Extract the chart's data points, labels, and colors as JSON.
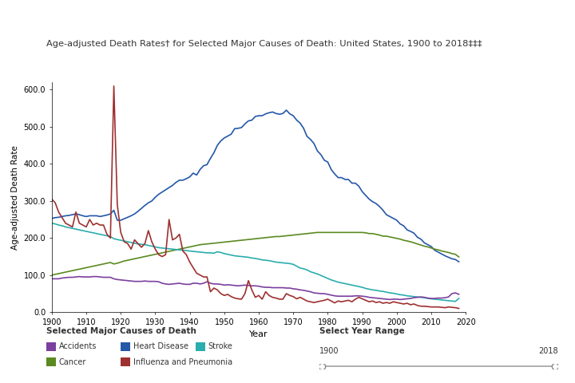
{
  "title": "Age-adjusted Death Rates† for Selected Major Causes of Death: United States, 1900 to 2018‡‡‡",
  "xlabel": "Year",
  "ylabel": "Age-adjusted Death Rate",
  "ylim": [
    0,
    620
  ],
  "xlim": [
    1900,
    2020
  ],
  "yticks": [
    0.0,
    100.0,
    200.0,
    300.0,
    400.0,
    500.0,
    600.0
  ],
  "xticks": [
    1900,
    1910,
    1920,
    1930,
    1940,
    1950,
    1960,
    1970,
    1980,
    1990,
    2000,
    2010,
    2020
  ],
  "legend_title": "Selected Major Causes of Death",
  "slider_label": "Select Year Range",
  "slider_start": "1900",
  "slider_end": "2018",
  "background_color": "#ffffff",
  "colors": {
    "heart_disease": "#2457a8",
    "cancer": "#5a8a20",
    "stroke": "#2aadad",
    "accidents": "#7b3f9e",
    "influenza": "#9e3030"
  },
  "heart_disease": {
    "years": [
      1900,
      1901,
      1902,
      1903,
      1904,
      1905,
      1906,
      1907,
      1908,
      1909,
      1910,
      1911,
      1912,
      1913,
      1914,
      1915,
      1916,
      1917,
      1918,
      1919,
      1920,
      1921,
      1922,
      1923,
      1924,
      1925,
      1926,
      1927,
      1928,
      1929,
      1930,
      1931,
      1932,
      1933,
      1934,
      1935,
      1936,
      1937,
      1938,
      1939,
      1940,
      1941,
      1942,
      1943,
      1944,
      1945,
      1946,
      1947,
      1948,
      1949,
      1950,
      1951,
      1952,
      1953,
      1954,
      1955,
      1956,
      1957,
      1958,
      1959,
      1960,
      1961,
      1962,
      1963,
      1964,
      1965,
      1966,
      1967,
      1968,
      1969,
      1970,
      1971,
      1972,
      1973,
      1974,
      1975,
      1976,
      1977,
      1978,
      1979,
      1980,
      1981,
      1982,
      1983,
      1984,
      1985,
      1986,
      1987,
      1988,
      1989,
      1990,
      1991,
      1992,
      1993,
      1994,
      1995,
      1996,
      1997,
      1998,
      1999,
      2000,
      2001,
      2002,
      2003,
      2004,
      2005,
      2006,
      2007,
      2008,
      2009,
      2010,
      2011,
      2012,
      2013,
      2014,
      2015,
      2016,
      2017,
      2018
    ],
    "values": [
      253,
      255,
      256,
      258,
      260,
      261,
      263,
      265,
      263,
      260,
      258,
      260,
      260,
      260,
      258,
      260,
      262,
      265,
      275,
      248,
      248,
      252,
      256,
      260,
      265,
      272,
      280,
      288,
      295,
      300,
      310,
      318,
      324,
      330,
      336,
      342,
      350,
      356,
      356,
      360,
      365,
      375,
      370,
      385,
      395,
      398,
      415,
      430,
      450,
      462,
      470,
      475,
      480,
      495,
      496,
      498,
      508,
      516,
      518,
      528,
      530,
      530,
      535,
      538,
      540,
      536,
      534,
      536,
      545,
      535,
      530,
      518,
      510,
      496,
      474,
      466,
      455,
      435,
      425,
      410,
      405,
      385,
      373,
      363,
      363,
      358,
      358,
      348,
      348,
      340,
      325,
      315,
      305,
      298,
      293,
      285,
      275,
      263,
      258,
      253,
      248,
      238,
      233,
      222,
      218,
      213,
      202,
      197,
      187,
      182,
      177,
      167,
      162,
      157,
      152,
      148,
      144,
      142,
      136
    ]
  },
  "cancer": {
    "years": [
      1900,
      1901,
      1902,
      1903,
      1904,
      1905,
      1906,
      1907,
      1908,
      1909,
      1910,
      1911,
      1912,
      1913,
      1914,
      1915,
      1916,
      1917,
      1918,
      1919,
      1920,
      1921,
      1922,
      1923,
      1924,
      1925,
      1926,
      1927,
      1928,
      1929,
      1930,
      1931,
      1932,
      1933,
      1934,
      1935,
      1936,
      1937,
      1938,
      1939,
      1940,
      1941,
      1942,
      1943,
      1944,
      1945,
      1946,
      1947,
      1948,
      1949,
      1950,
      1951,
      1952,
      1953,
      1954,
      1955,
      1956,
      1957,
      1958,
      1959,
      1960,
      1961,
      1962,
      1963,
      1964,
      1965,
      1966,
      1967,
      1968,
      1969,
      1970,
      1971,
      1972,
      1973,
      1974,
      1975,
      1976,
      1977,
      1978,
      1979,
      1980,
      1981,
      1982,
      1983,
      1984,
      1985,
      1986,
      1987,
      1988,
      1989,
      1990,
      1991,
      1992,
      1993,
      1994,
      1995,
      1996,
      1997,
      1998,
      1999,
      2000,
      2001,
      2002,
      2003,
      2004,
      2005,
      2006,
      2007,
      2008,
      2009,
      2010,
      2011,
      2012,
      2013,
      2014,
      2015,
      2016,
      2017,
      2018
    ],
    "values": [
      100,
      102,
      104,
      106,
      108,
      110,
      112,
      114,
      116,
      118,
      120,
      122,
      124,
      126,
      128,
      130,
      132,
      134,
      130,
      132,
      135,
      138,
      140,
      142,
      144,
      146,
      148,
      150,
      152,
      154,
      156,
      158,
      160,
      162,
      164,
      166,
      168,
      170,
      172,
      174,
      176,
      178,
      180,
      182,
      183,
      184,
      185,
      186,
      187,
      188,
      189,
      190,
      191,
      192,
      193,
      194,
      195,
      196,
      197,
      198,
      199,
      200,
      201,
      202,
      203,
      204,
      204,
      205,
      206,
      207,
      208,
      209,
      210,
      211,
      212,
      213,
      214,
      215,
      215,
      215,
      215,
      215,
      215,
      215,
      215,
      215,
      215,
      215,
      215,
      215,
      215,
      214,
      212,
      212,
      210,
      208,
      205,
      205,
      203,
      201,
      199,
      197,
      194,
      192,
      190,
      187,
      184,
      181,
      178,
      176,
      173,
      170,
      168,
      165,
      163,
      161,
      158,
      156,
      149
    ]
  },
  "stroke": {
    "years": [
      1900,
      1901,
      1902,
      1903,
      1904,
      1905,
      1906,
      1907,
      1908,
      1909,
      1910,
      1911,
      1912,
      1913,
      1914,
      1915,
      1916,
      1917,
      1918,
      1919,
      1920,
      1921,
      1922,
      1923,
      1924,
      1925,
      1926,
      1927,
      1928,
      1929,
      1930,
      1931,
      1932,
      1933,
      1934,
      1935,
      1936,
      1937,
      1938,
      1939,
      1940,
      1941,
      1942,
      1943,
      1944,
      1945,
      1946,
      1947,
      1948,
      1949,
      1950,
      1951,
      1952,
      1953,
      1954,
      1955,
      1956,
      1957,
      1958,
      1959,
      1960,
      1961,
      1962,
      1963,
      1964,
      1965,
      1966,
      1967,
      1968,
      1969,
      1970,
      1971,
      1972,
      1973,
      1974,
      1975,
      1976,
      1977,
      1978,
      1979,
      1980,
      1981,
      1982,
      1983,
      1984,
      1985,
      1986,
      1987,
      1988,
      1989,
      1990,
      1991,
      1992,
      1993,
      1994,
      1995,
      1996,
      1997,
      1998,
      1999,
      2000,
      2001,
      2002,
      2003,
      2004,
      2005,
      2006,
      2007,
      2008,
      2009,
      2010,
      2011,
      2012,
      2013,
      2014,
      2015,
      2016,
      2017,
      2018
    ],
    "values": [
      240,
      238,
      235,
      233,
      230,
      228,
      226,
      224,
      222,
      220,
      218,
      216,
      214,
      212,
      210,
      208,
      206,
      204,
      198,
      196,
      194,
      192,
      190,
      188,
      186,
      184,
      183,
      182,
      180,
      178,
      176,
      174,
      173,
      172,
      171,
      170,
      169,
      168,
      167,
      166,
      165,
      164,
      163,
      162,
      161,
      160,
      160,
      159,
      163,
      161,
      158,
      156,
      154,
      152,
      151,
      150,
      149,
      148,
      146,
      145,
      143,
      141,
      140,
      139,
      137,
      135,
      134,
      133,
      132,
      131,
      129,
      124,
      119,
      117,
      114,
      109,
      106,
      103,
      99,
      95,
      91,
      87,
      84,
      81,
      79,
      77,
      75,
      73,
      71,
      69,
      67,
      64,
      62,
      60,
      59,
      57,
      56,
      54,
      52,
      51,
      49,
      47,
      46,
      44,
      43,
      42,
      41,
      40,
      39,
      37,
      36,
      35,
      34,
      33,
      32,
      31,
      30,
      29,
      37
    ]
  },
  "accidents": {
    "years": [
      1900,
      1901,
      1902,
      1903,
      1904,
      1905,
      1906,
      1907,
      1908,
      1909,
      1910,
      1911,
      1912,
      1913,
      1914,
      1915,
      1916,
      1917,
      1918,
      1919,
      1920,
      1921,
      1922,
      1923,
      1924,
      1925,
      1926,
      1927,
      1928,
      1929,
      1930,
      1931,
      1932,
      1933,
      1934,
      1935,
      1936,
      1937,
      1938,
      1939,
      1940,
      1941,
      1942,
      1943,
      1944,
      1945,
      1946,
      1947,
      1948,
      1949,
      1950,
      1951,
      1952,
      1953,
      1954,
      1955,
      1956,
      1957,
      1958,
      1959,
      1960,
      1961,
      1962,
      1963,
      1964,
      1965,
      1966,
      1967,
      1968,
      1969,
      1970,
      1971,
      1972,
      1973,
      1974,
      1975,
      1976,
      1977,
      1978,
      1979,
      1980,
      1981,
      1982,
      1983,
      1984,
      1985,
      1986,
      1987,
      1988,
      1989,
      1990,
      1991,
      1992,
      1993,
      1994,
      1995,
      1996,
      1997,
      1998,
      1999,
      2000,
      2001,
      2002,
      2003,
      2004,
      2005,
      2006,
      2007,
      2008,
      2009,
      2010,
      2011,
      2012,
      2013,
      2014,
      2015,
      2016,
      2017,
      2018
    ],
    "values": [
      90,
      90,
      90,
      92,
      93,
      94,
      94,
      95,
      96,
      95,
      95,
      95,
      96,
      96,
      95,
      94,
      94,
      94,
      90,
      88,
      87,
      86,
      85,
      84,
      83,
      83,
      83,
      84,
      83,
      83,
      83,
      82,
      78,
      76,
      75,
      76,
      77,
      78,
      76,
      75,
      75,
      78,
      78,
      76,
      78,
      82,
      78,
      76,
      76,
      75,
      73,
      74,
      73,
      72,
      71,
      72,
      73,
      72,
      71,
      71,
      70,
      68,
      67,
      67,
      66,
      66,
      66,
      66,
      65,
      65,
      63,
      62,
      60,
      59,
      57,
      55,
      52,
      51,
      50,
      50,
      48,
      46,
      44,
      43,
      43,
      43,
      43,
      43,
      44,
      44,
      43,
      42,
      40,
      39,
      38,
      37,
      36,
      35,
      34,
      35,
      35,
      34,
      35,
      36,
      37,
      39,
      40,
      41,
      40,
      38,
      37,
      37,
      38,
      38,
      39,
      41,
      50,
      52,
      48
    ]
  },
  "influenza": {
    "years": [
      1900,
      1901,
      1902,
      1903,
      1904,
      1905,
      1906,
      1907,
      1908,
      1909,
      1910,
      1911,
      1912,
      1913,
      1914,
      1915,
      1916,
      1917,
      1918,
      1919,
      1920,
      1921,
      1922,
      1923,
      1924,
      1925,
      1926,
      1927,
      1928,
      1929,
      1930,
      1931,
      1932,
      1933,
      1934,
      1935,
      1936,
      1937,
      1938,
      1939,
      1940,
      1941,
      1942,
      1943,
      1944,
      1945,
      1946,
      1947,
      1948,
      1949,
      1950,
      1951,
      1952,
      1953,
      1954,
      1955,
      1956,
      1957,
      1958,
      1959,
      1960,
      1961,
      1962,
      1963,
      1964,
      1965,
      1966,
      1967,
      1968,
      1969,
      1970,
      1971,
      1972,
      1973,
      1974,
      1975,
      1976,
      1977,
      1978,
      1979,
      1980,
      1981,
      1982,
      1983,
      1984,
      1985,
      1986,
      1987,
      1988,
      1989,
      1990,
      1991,
      1992,
      1993,
      1994,
      1995,
      1996,
      1997,
      1998,
      1999,
      2000,
      2001,
      2002,
      2003,
      2004,
      2005,
      2006,
      2007,
      2008,
      2009,
      2010,
      2011,
      2012,
      2013,
      2014,
      2015,
      2016,
      2017,
      2018
    ],
    "values": [
      305,
      295,
      270,
      255,
      240,
      235,
      230,
      270,
      240,
      235,
      230,
      250,
      235,
      240,
      235,
      235,
      210,
      200,
      610,
      290,
      215,
      190,
      185,
      170,
      195,
      185,
      175,
      185,
      220,
      190,
      170,
      155,
      150,
      155,
      250,
      195,
      200,
      210,
      165,
      155,
      135,
      120,
      105,
      100,
      95,
      95,
      55,
      65,
      60,
      50,
      45,
      48,
      42,
      38,
      36,
      35,
      50,
      85,
      60,
      40,
      45,
      35,
      55,
      45,
      40,
      38,
      35,
      35,
      50,
      45,
      42,
      36,
      40,
      35,
      30,
      28,
      26,
      28,
      30,
      32,
      35,
      30,
      25,
      30,
      28,
      30,
      32,
      28,
      35,
      40,
      36,
      32,
      28,
      30,
      26,
      28,
      24,
      26,
      24,
      28,
      26,
      24,
      22,
      24,
      20,
      22,
      18,
      16,
      16,
      15,
      14,
      14,
      14,
      13,
      12,
      14,
      13,
      12,
      10
    ]
  }
}
